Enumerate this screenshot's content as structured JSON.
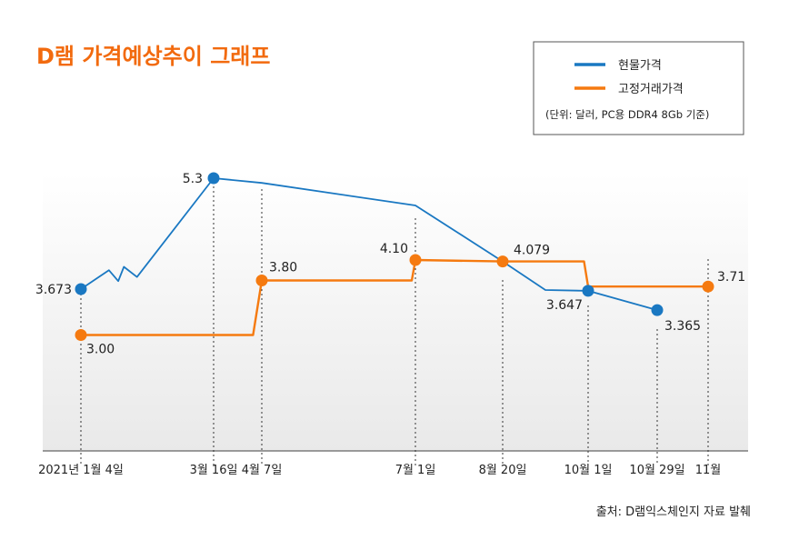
{
  "chart_data": {
    "type": "line",
    "title": "D램 가격예상추이 그래프",
    "legend": {
      "placement": "top-right",
      "entries": [
        "현물가격",
        "고정거래가격"
      ],
      "note": "(단위: 달러, PC용 DDR4 8Gb 기준)"
    },
    "source": "출처: D램익스체인지 자료 발췌",
    "x_ticks": [
      "2021년 1월 4일",
      "3월 16일",
      "4월 7일",
      "7월 1일",
      "8월 20일",
      "10월 1일",
      "10월 29일",
      "11월"
    ],
    "grid": false,
    "ylim": [
      2.1,
      5.7
    ],
    "series": [
      {
        "name": "현물가격",
        "color": "#1a78c2",
        "points": [
          {
            "x": "2021-01-04",
            "y": 3.673,
            "label": "3.673"
          },
          {
            "x": "2021-01-19",
            "y": 3.95
          },
          {
            "x": "2021-01-24",
            "y": 3.79
          },
          {
            "x": "2021-01-27",
            "y": 4.0
          },
          {
            "x": "2021-02-03",
            "y": 3.85
          },
          {
            "x": "2021-03-16",
            "y": 5.3,
            "label": "5.3"
          },
          {
            "x": "2021-04-07",
            "y": 5.23
          },
          {
            "x": "2021-07-01",
            "y": 4.9
          },
          {
            "x": "2021-08-20",
            "y": 4.079
          },
          {
            "x": "2021-09-10",
            "y": 3.66
          },
          {
            "x": "2021-10-01",
            "y": 3.647,
            "label": "3.647"
          },
          {
            "x": "2021-10-29",
            "y": 3.365,
            "label": "3.365",
            "marker": true
          }
        ]
      },
      {
        "name": "고정거래가격",
        "color": "#f57a10",
        "points": [
          {
            "x": "2021-01-04",
            "y": 3.0,
            "label": "3.00"
          },
          {
            "x": "2021-04-03",
            "y": 3.0
          },
          {
            "x": "2021-04-07",
            "y": 3.8,
            "label": "3.80"
          },
          {
            "x": "2021-06-29",
            "y": 3.8
          },
          {
            "x": "2021-07-01",
            "y": 4.1,
            "label": "4.10"
          },
          {
            "x": "2021-08-20",
            "y": 4.079,
            "label": "4.079"
          },
          {
            "x": "2021-09-29",
            "y": 4.079
          },
          {
            "x": "2021-10-01",
            "y": 3.71
          },
          {
            "x": "2021-11-01",
            "y": 3.71,
            "label": "3.71"
          }
        ]
      }
    ]
  }
}
